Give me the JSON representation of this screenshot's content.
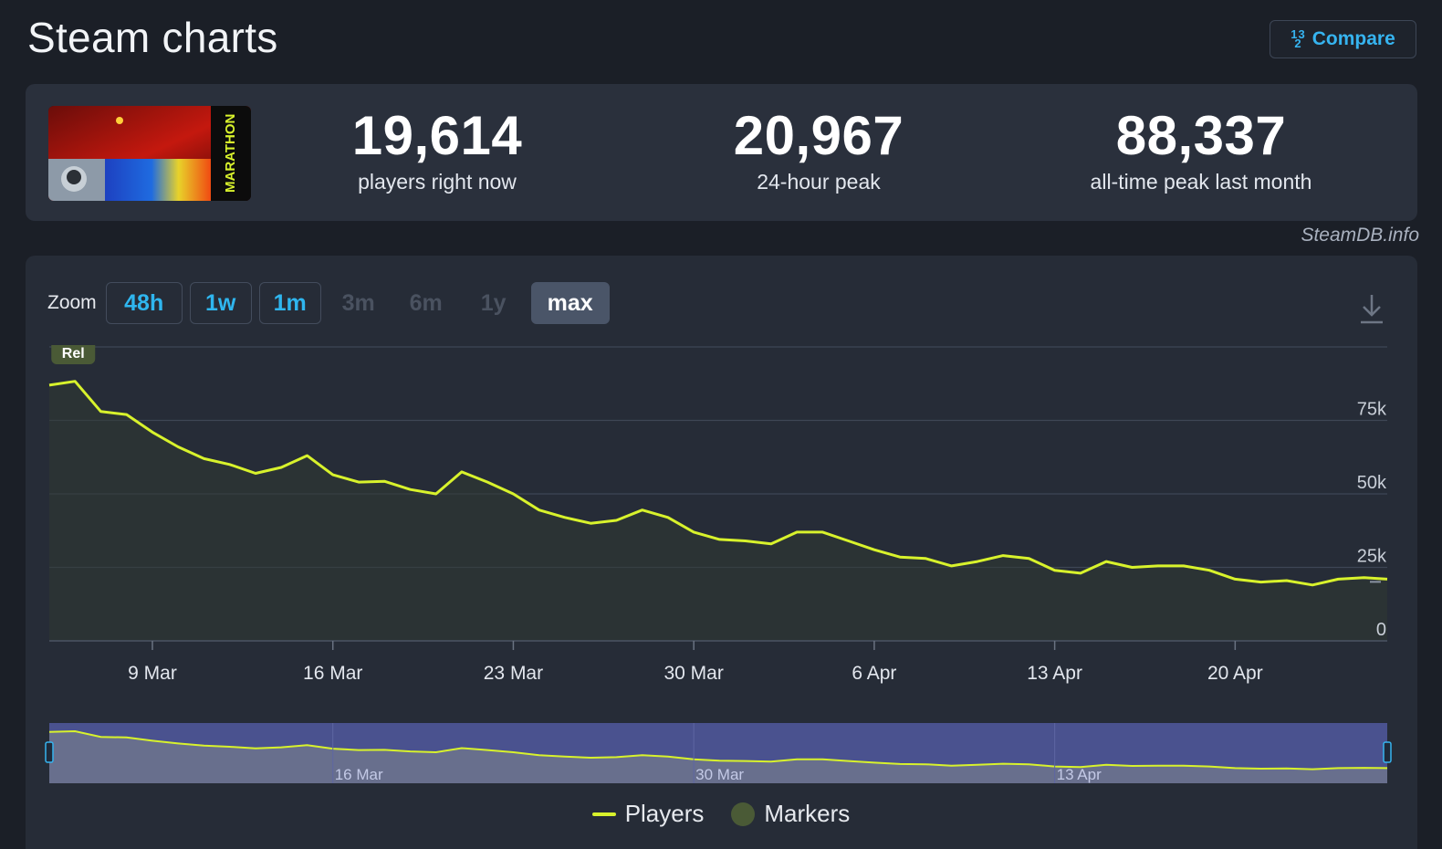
{
  "header": {
    "title": "Steam charts",
    "compare_label": "Compare",
    "compare_icon": "sort-numeric-icon"
  },
  "stats": [
    {
      "value": "19,614",
      "label": "players right now"
    },
    {
      "value": "20,967",
      "label": "24-hour peak"
    },
    {
      "value": "88,337",
      "label": "all-time peak last month"
    }
  ],
  "source_label": "SteamDB.info",
  "game_logo_text": "MARATHON",
  "zoom": {
    "label": "Zoom",
    "options": [
      "48h",
      "1w",
      "1m",
      "3m",
      "6m",
      "1y",
      "max"
    ],
    "selected": "max"
  },
  "colors": {
    "line": "#d8f22c",
    "marker": "#4a5a36",
    "accent": "#36b4f0"
  },
  "chart_data": {
    "type": "line",
    "title": "",
    "xlabel": "",
    "ylabel": "",
    "ylim": [
      0,
      100000
    ],
    "yticks": [
      0,
      25000,
      50000,
      75000
    ],
    "ytick_labels": [
      "0",
      "25k",
      "50k",
      "75k"
    ],
    "x_tick_labels": [
      "9 Mar",
      "16 Mar",
      "23 Mar",
      "30 Mar",
      "6 Apr",
      "13 Apr",
      "20 Apr"
    ],
    "x_tick_days": [
      4,
      11,
      18,
      25,
      32,
      39,
      46
    ],
    "x_range_days": [
      0,
      51.9
    ],
    "grid": true,
    "legend_position": "bottom",
    "series": [
      {
        "name": "Players",
        "days": [
          0,
          1,
          2,
          3,
          4,
          5,
          6,
          7,
          8,
          9,
          10,
          11,
          12,
          13,
          14,
          15,
          16,
          17,
          18,
          19,
          20,
          21,
          22,
          23,
          24,
          25,
          26,
          27,
          28,
          29,
          30,
          31,
          32,
          33,
          34,
          35,
          36,
          37,
          38,
          39,
          40,
          41,
          42,
          43,
          44,
          45,
          46,
          47,
          48,
          49,
          50,
          51,
          51.9
        ],
        "values": [
          87000,
          88300,
          78000,
          77000,
          71000,
          66000,
          62000,
          60000,
          57000,
          59000,
          63000,
          56500,
          54000,
          54300,
          51500,
          50000,
          57500,
          54000,
          50000,
          44500,
          42000,
          40000,
          41000,
          44500,
          42000,
          37000,
          34500,
          34000,
          33000,
          37000,
          37000,
          34000,
          31000,
          28500,
          28000,
          25500,
          27000,
          29000,
          28000,
          24000,
          23000,
          27000,
          25000,
          25500,
          25500,
          24000,
          21000,
          20000,
          20500,
          19000,
          21000,
          21500,
          21000
        ]
      }
    ],
    "markers": [
      {
        "label": "Rel",
        "day": 1
      }
    ],
    "navigator": {
      "tick_labels": [
        "16 Mar",
        "30 Mar",
        "13 Apr"
      ]
    }
  },
  "legend": {
    "players_label": "Players",
    "markers_label": "Markers"
  }
}
